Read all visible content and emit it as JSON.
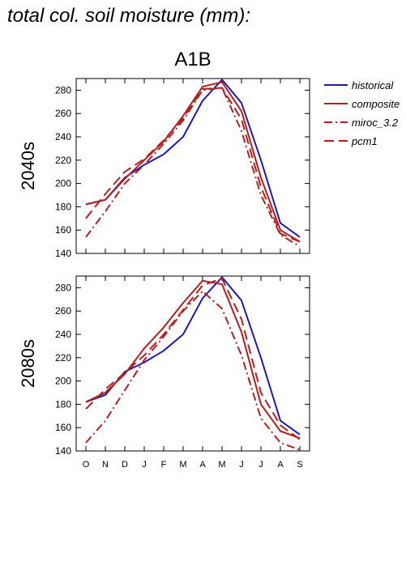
{
  "figure": {
    "title": "total col. soil moisture (mm):",
    "scenario": "A1B"
  },
  "colors": {
    "historical": "#1a1ab4",
    "model": "#b41e1e",
    "axis": "#000000"
  },
  "chart_data": [
    {
      "type": "line",
      "panel_label": "2040s",
      "categories": [
        "O",
        "N",
        "D",
        "J",
        "F",
        "M",
        "A",
        "M",
        "J",
        "J",
        "A",
        "S"
      ],
      "ylim": [
        140,
        290
      ],
      "yticks": [
        140,
        160,
        180,
        200,
        220,
        240,
        260,
        280
      ],
      "series": [
        {
          "name": "historical",
          "style": "solid",
          "color": "blue",
          "values": [
            182,
            186,
            205,
            216,
            225,
            240,
            271,
            289,
            269,
            220,
            166,
            154
          ]
        },
        {
          "name": "composite",
          "style": "solid",
          "color": "red",
          "values": [
            182,
            186,
            204,
            220,
            236,
            258,
            283,
            287,
            262,
            205,
            160,
            150
          ]
        },
        {
          "name": "miroc_3.2",
          "style": "dash-dot",
          "color": "red",
          "values": [
            154,
            176,
            200,
            216,
            234,
            254,
            280,
            282,
            245,
            190,
            156,
            146
          ]
        },
        {
          "name": "pcm1",
          "style": "dash",
          "color": "red",
          "values": [
            170,
            191,
            210,
            221,
            237,
            256,
            281,
            282,
            255,
            197,
            157,
            150
          ]
        }
      ],
      "legend": "right"
    },
    {
      "type": "line",
      "panel_label": "2080s",
      "categories": [
        "O",
        "N",
        "D",
        "J",
        "F",
        "M",
        "A",
        "M",
        "J",
        "J",
        "A",
        "S"
      ],
      "ylim": [
        140,
        290
      ],
      "yticks": [
        140,
        160,
        180,
        200,
        220,
        240,
        260,
        280
      ],
      "series": [
        {
          "name": "historical",
          "style": "solid",
          "color": "blue",
          "values": [
            182,
            188,
            208,
            216,
            226,
            240,
            271,
            289,
            269,
            220,
            166,
            154
          ]
        },
        {
          "name": "composite",
          "style": "solid",
          "color": "red",
          "values": [
            182,
            190,
            206,
            228,
            246,
            267,
            286,
            283,
            242,
            180,
            157,
            151
          ]
        },
        {
          "name": "miroc_3.2",
          "style": "dash-dot",
          "color": "red",
          "values": [
            147,
            166,
            192,
            218,
            238,
            260,
            277,
            262,
            222,
            168,
            147,
            141
          ]
        },
        {
          "name": "pcm1",
          "style": "dash",
          "color": "red",
          "values": [
            176,
            193,
            207,
            222,
            240,
            261,
            282,
            288,
            253,
            190,
            162,
            150
          ]
        }
      ]
    }
  ]
}
